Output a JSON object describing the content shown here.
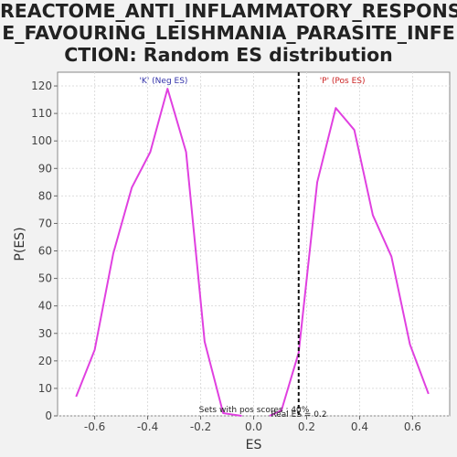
{
  "title": "REACTOME_ANTI_INFLAMMATORY_RESPONSE_FAVOURING_LEISHMANIA_PARASITE_INFECTION: Random ES distribution",
  "title_lines": [
    "REACTOME_ANTI_INFLAMMATORY_RESPONS",
    "E_FAVOURING_LEISHMANIA_PARASITE_INFE",
    "CTION: Random ES distribution"
  ],
  "colors": {
    "line": "#e040e0",
    "neg_label": "#3333aa",
    "pos_label": "#cc2222",
    "grid": "#dddddd",
    "plot_bg": "#ffffff",
    "page_bg": "#f2f2f2"
  },
  "chart_data": {
    "type": "line",
    "xlabel": "ES",
    "ylabel": "P(ES)",
    "xlim": [
      -0.74,
      0.74
    ],
    "ylim": [
      0,
      125
    ],
    "xticks": [
      -0.6,
      -0.4,
      -0.2,
      0.0,
      0.2,
      0.4,
      0.6
    ],
    "xtick_labels": [
      "-0.6",
      "-0.4",
      "-0.2",
      "0.0",
      "0.2",
      "0.4",
      "0.6"
    ],
    "yticks": [
      0,
      10,
      20,
      30,
      40,
      50,
      60,
      70,
      80,
      90,
      100,
      110,
      120
    ],
    "ytick_labels": [
      "0",
      "10",
      "20",
      "30",
      "40",
      "50",
      "60",
      "70",
      "80",
      "90",
      "100",
      "110",
      "120"
    ],
    "grid": true,
    "series": [
      {
        "x": [
          -0.67,
          -0.6,
          -0.53,
          -0.46,
          -0.39,
          -0.325,
          -0.255,
          -0.185,
          -0.115,
          -0.045
        ],
        "y": [
          7,
          24,
          59,
          83,
          96,
          119,
          96,
          27,
          1,
          0
        ]
      },
      {
        "x": [
          0.06,
          0.105,
          0.17,
          0.24,
          0.31,
          0.38,
          0.45,
          0.52,
          0.59,
          0.66
        ],
        "y": [
          0,
          2,
          23,
          85,
          112,
          104,
          73,
          58,
          26,
          8
        ]
      }
    ],
    "observed_es": 0.17,
    "annotations": {
      "neg_label": "'K' (Neg ES)",
      "pos_label": "'P' (Pos ES)",
      "bottom_note": "Sets with pos scores : 40%",
      "bottom_note2": "Real ES = 0.2"
    }
  }
}
